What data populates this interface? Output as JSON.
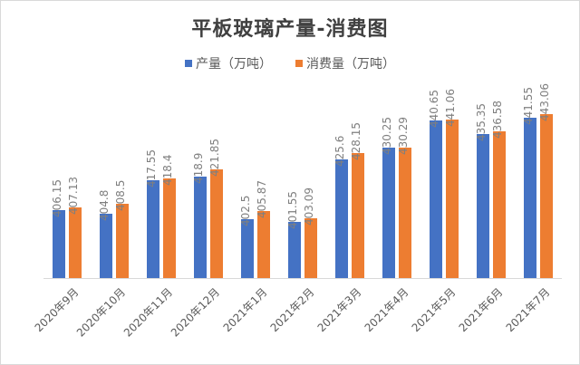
{
  "chart_data": {
    "type": "bar",
    "title": "平板玻璃产量-消费图",
    "xlabel": "",
    "ylabel": "",
    "legend_position": "top",
    "grid": false,
    "categories": [
      "2020年9月",
      "2020年10月",
      "2020年11月",
      "2020年12月",
      "2021年1月",
      "2021年2月",
      "2021年3月",
      "2021年4月",
      "2021年5月",
      "2021年6月",
      "2021年7月"
    ],
    "series": [
      {
        "name": "产量（万吨）",
        "color": "#4472c4",
        "values": [
          406.15,
          404.8,
          417.55,
          418.9,
          402.5,
          401.55,
          425.6,
          430.25,
          440.65,
          435.35,
          441.55
        ]
      },
      {
        "name": "消费量（万吨）",
        "color": "#ed7d31",
        "values": [
          407.13,
          408.5,
          418.4,
          421.85,
          405.87,
          403.09,
          428.15,
          430.29,
          441.06,
          436.58,
          443.06
        ]
      }
    ],
    "ylim": [
      380,
      455
    ]
  }
}
